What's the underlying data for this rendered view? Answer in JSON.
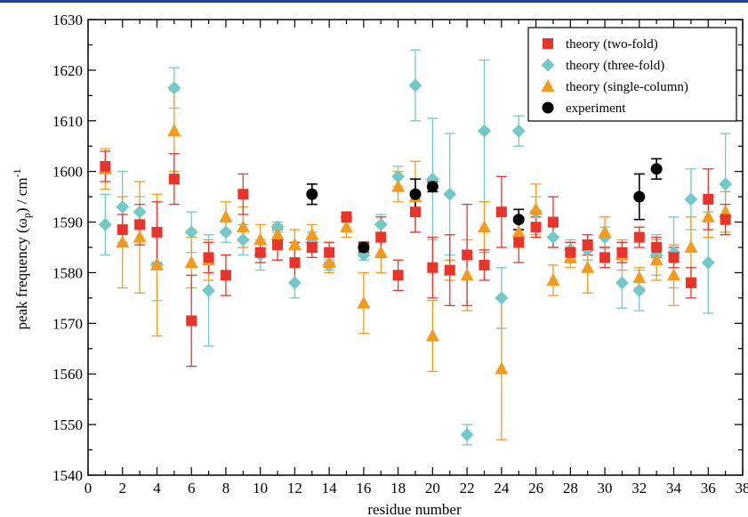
{
  "chart_data": {
    "type": "scatter",
    "title": "",
    "xlabel": "residue number",
    "ylabel_main": "peak frequency (ω",
    "ylabel_sub": "p",
    "ylabel_rest": ") / cm",
    "ylabel_sup": "-1",
    "xlim": [
      0,
      38
    ],
    "ylim": [
      1540,
      1630
    ],
    "x_ticks": [
      "0",
      "2",
      "4",
      "6",
      "8",
      "10",
      "12",
      "14",
      "16",
      "18",
      "20",
      "22",
      "24",
      "26",
      "28",
      "30",
      "32",
      "34",
      "36",
      "38"
    ],
    "y_ticks": [
      "1540",
      "1550",
      "1560",
      "1570",
      "1580",
      "1590",
      "1600",
      "1610",
      "1620",
      "1630"
    ],
    "grid": false,
    "legend_position": "top-right",
    "series": [
      {
        "name": "theory (two-fold)",
        "marker": "square",
        "color": "#e8342b",
        "points": [
          [
            1,
            1601,
            3
          ],
          [
            2,
            1588.5,
            3
          ],
          [
            3,
            1589.5,
            4
          ],
          [
            4,
            1588,
            6
          ],
          [
            5,
            1598.5,
            5
          ],
          [
            6,
            1570.5,
            9
          ],
          [
            7,
            1583,
            3
          ],
          [
            8,
            1579.5,
            4
          ],
          [
            9,
            1595.5,
            4
          ],
          [
            10,
            1584,
            2
          ],
          [
            11,
            1585.5,
            3
          ],
          [
            12,
            1582,
            4
          ],
          [
            13,
            1585,
            2
          ],
          [
            14,
            1584,
            2
          ],
          [
            15,
            1591,
            1
          ],
          [
            16,
            1585,
            1
          ],
          [
            17,
            1587,
            4
          ],
          [
            18,
            1579.5,
            3
          ],
          [
            19,
            1592,
            4
          ],
          [
            20,
            1581,
            6
          ],
          [
            21,
            1580.5,
            7
          ],
          [
            22,
            1583.5,
            10
          ],
          [
            23,
            1581.5,
            3
          ],
          [
            24,
            1592,
            7
          ],
          [
            25,
            1586,
            4
          ],
          [
            26,
            1589,
            2
          ],
          [
            27,
            1590,
            5
          ],
          [
            28,
            1584,
            2
          ],
          [
            29,
            1585.5,
            2
          ],
          [
            30,
            1583,
            2
          ],
          [
            31,
            1584,
            2
          ],
          [
            32,
            1587,
            2
          ],
          [
            33,
            1585,
            2
          ],
          [
            34,
            1583,
            2
          ],
          [
            35,
            1578,
            3
          ],
          [
            36,
            1594.5,
            6
          ],
          [
            37,
            1590.5,
            3
          ]
        ]
      },
      {
        "name": "theory (three-fold)",
        "marker": "diamond",
        "color": "#72c9c6",
        "points": [
          [
            1,
            1589.5,
            6
          ],
          [
            2,
            1593,
            7
          ],
          [
            3,
            1592,
            3
          ],
          [
            4,
            1581.5,
            7
          ],
          [
            5,
            1616.5,
            4
          ],
          [
            6,
            1588,
            4
          ],
          [
            7,
            1576.5,
            11
          ],
          [
            8,
            1588,
            2
          ],
          [
            9,
            1586.5,
            3
          ],
          [
            10,
            1583.5,
            3
          ],
          [
            11,
            1589,
            1
          ],
          [
            12,
            1578,
            3
          ],
          [
            13,
            1586,
            2
          ],
          [
            14,
            1581.5,
            1
          ],
          [
            15,
            1591,
            1
          ],
          [
            16,
            1583.5,
            1
          ],
          [
            17,
            1589.5,
            2
          ],
          [
            18,
            1599,
            2
          ],
          [
            19,
            1617,
            7
          ],
          [
            20,
            1598.5,
            12
          ],
          [
            21,
            1595.5,
            12
          ],
          [
            22,
            1548,
            2
          ],
          [
            23,
            1608,
            14
          ],
          [
            24,
            1575,
            6
          ],
          [
            25,
            1608,
            3
          ],
          [
            26,
            1592,
            3
          ],
          [
            27,
            1587,
            2
          ],
          [
            28,
            1584.5,
            2
          ],
          [
            29,
            1584.5,
            2
          ],
          [
            30,
            1587,
            2
          ],
          [
            31,
            1578,
            5
          ],
          [
            32,
            1576.5,
            4
          ],
          [
            33,
            1583.5,
            4
          ],
          [
            34,
            1584,
            7
          ],
          [
            35,
            1594.5,
            6
          ],
          [
            36,
            1582,
            10
          ],
          [
            37,
            1597.5,
            10
          ]
        ]
      },
      {
        "name": "theory (single-column)",
        "marker": "triangle",
        "color": "#f29b1d",
        "points": [
          [
            1,
            1600.5,
            4
          ],
          [
            2,
            1586,
            9
          ],
          [
            3,
            1587,
            11
          ],
          [
            4,
            1581.5,
            14
          ],
          [
            5,
            1608,
            8
          ],
          [
            6,
            1582,
            5
          ],
          [
            7,
            1582.5,
            4
          ],
          [
            8,
            1591,
            3
          ],
          [
            9,
            1589,
            4
          ],
          [
            10,
            1586.5,
            3
          ],
          [
            11,
            1587.5,
            2
          ],
          [
            12,
            1585.5,
            3
          ],
          [
            13,
            1587.5,
            2
          ],
          [
            14,
            1582,
            2
          ],
          [
            15,
            1589,
            2
          ],
          [
            16,
            1574,
            6
          ],
          [
            17,
            1584,
            4
          ],
          [
            18,
            1597,
            3
          ],
          [
            19,
            1595,
            7
          ],
          [
            20,
            1567.5,
            7
          ],
          [
            21,
            1580.5,
            2
          ],
          [
            22,
            1579.5,
            7
          ],
          [
            23,
            1589,
            5
          ],
          [
            24,
            1561,
            14
          ],
          [
            25,
            1588,
            3
          ],
          [
            26,
            1592.5,
            5
          ],
          [
            27,
            1578.5,
            3
          ],
          [
            28,
            1583,
            2
          ],
          [
            29,
            1581,
            5
          ],
          [
            30,
            1588,
            3
          ],
          [
            31,
            1583.5,
            3
          ],
          [
            32,
            1579,
            2
          ],
          [
            33,
            1582.5,
            4
          ],
          [
            34,
            1579.5,
            6
          ],
          [
            35,
            1585,
            6
          ],
          [
            36,
            1591,
            4
          ],
          [
            37,
            1592,
            4
          ]
        ]
      },
      {
        "name": "experiment",
        "marker": "circle",
        "color": "#000000",
        "points": [
          [
            13,
            1595.5,
            2
          ],
          [
            16,
            1585,
            1
          ],
          [
            19,
            1595.5,
            3
          ],
          [
            20,
            1597,
            1
          ],
          [
            25,
            1590.5,
            2
          ],
          [
            32,
            1595,
            4.5
          ],
          [
            33,
            1600.5,
            2
          ]
        ]
      }
    ]
  }
}
